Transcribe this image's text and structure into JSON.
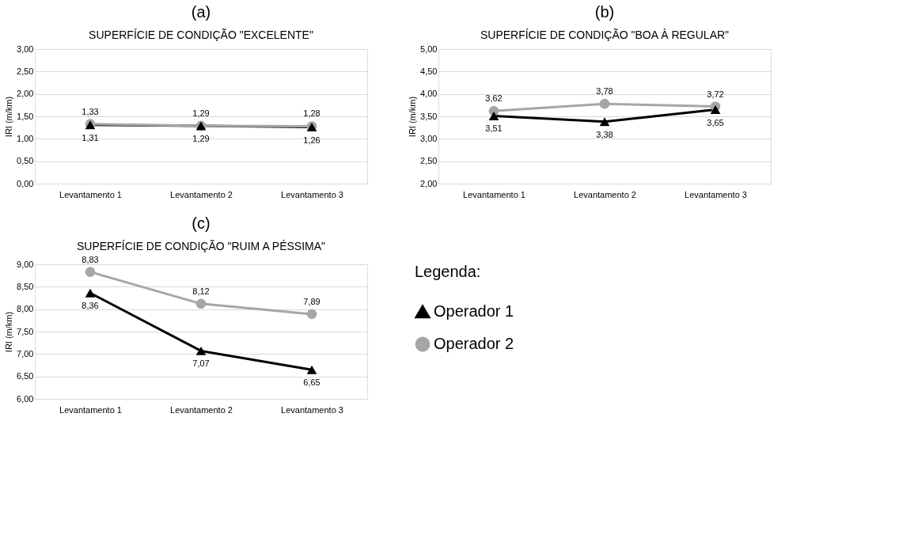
{
  "chart_data": [
    {
      "type": "line",
      "title": "(a)",
      "subtitle": "SUPERFÍCIE DE CONDIÇÃO \"EXCELENTE\"",
      "ylabel": "IRI (m/km)",
      "categories": [
        "Levantamento 1",
        "Levantamento 2",
        "Levantamento 3"
      ],
      "ylim": [
        0,
        3
      ],
      "yticks": [
        {
          "value": 0,
          "label": "0,00"
        },
        {
          "value": 0.5,
          "label": "0,50"
        },
        {
          "value": 1,
          "label": "1,00"
        },
        {
          "value": 1.5,
          "label": "1,50"
        },
        {
          "value": 2,
          "label": "2,00"
        },
        {
          "value": 2.5,
          "label": "2,50"
        },
        {
          "value": 3,
          "label": "3,00"
        }
      ],
      "grid": "y",
      "legend": false,
      "series": [
        {
          "color": "#000000",
          "marker": "triangle",
          "values": [
            1.31,
            1.29,
            1.26
          ],
          "value_labels": [
            "1,31",
            "1,29",
            "1,26"
          ]
        },
        {
          "color": "#a6a6a6",
          "marker": "circle",
          "values": [
            1.33,
            1.29,
            1.28
          ],
          "value_labels": [
            "1,33",
            "1,29",
            "1,28"
          ]
        }
      ]
    },
    {
      "type": "line",
      "title": "(b)",
      "subtitle": "SUPERFÍCIE DE CONDIÇÃO \"BOA À REGULAR\"",
      "ylabel": "IRI (m/km)",
      "categories": [
        "Levantamento 1",
        "Levantamento 2",
        "Levantamento 3"
      ],
      "ylim": [
        2,
        5
      ],
      "yticks": [
        {
          "value": 2,
          "label": "2,00"
        },
        {
          "value": 2.5,
          "label": "2,50"
        },
        {
          "value": 3,
          "label": "3,00"
        },
        {
          "value": 3.5,
          "label": "3,50"
        },
        {
          "value": 4,
          "label": "4,00"
        },
        {
          "value": 4.5,
          "label": "4,50"
        },
        {
          "value": 5,
          "label": "5,00"
        }
      ],
      "grid": "y",
      "legend": false,
      "series": [
        {
          "color": "#000000",
          "marker": "triangle",
          "values": [
            3.51,
            3.38,
            3.65
          ],
          "value_labels": [
            "3,51",
            "3,38",
            "3,65"
          ]
        },
        {
          "color": "#a6a6a6",
          "marker": "circle",
          "values": [
            3.62,
            3.78,
            3.72
          ],
          "value_labels": [
            "3,62",
            "3,78",
            "3,72"
          ]
        }
      ]
    },
    {
      "type": "line",
      "title": "(c)",
      "subtitle": "SUPERFÍCIE DE CONDIÇÃO \"RUIM A PÉSSIMA\"",
      "ylabel": "IRI (m/km)",
      "categories": [
        "Levantamento 1",
        "Levantamento 2",
        "Levantamento 3"
      ],
      "ylim": [
        6,
        9
      ],
      "yticks": [
        {
          "value": 6,
          "label": "6,00"
        },
        {
          "value": 6.5,
          "label": "6,50"
        },
        {
          "value": 7,
          "label": "7,00"
        },
        {
          "value": 7.5,
          "label": "7,50"
        },
        {
          "value": 8,
          "label": "8,00"
        },
        {
          "value": 8.5,
          "label": "8,50"
        },
        {
          "value": 9,
          "label": "9,00"
        }
      ],
      "grid": "y",
      "legend": "right",
      "legend_title": "Legenda:",
      "series": [
        {
          "name": "Operador 1",
          "color": "#000000",
          "marker": "triangle",
          "values": [
            8.36,
            7.07,
            6.65
          ],
          "value_labels": [
            "8,36",
            "7,07",
            "6,65"
          ]
        },
        {
          "name": "Operador 2",
          "color": "#a6a6a6",
          "marker": "circle",
          "values": [
            8.83,
            8.12,
            7.89
          ],
          "value_labels": [
            "8,83",
            "8,12",
            "7,89"
          ]
        }
      ]
    }
  ]
}
